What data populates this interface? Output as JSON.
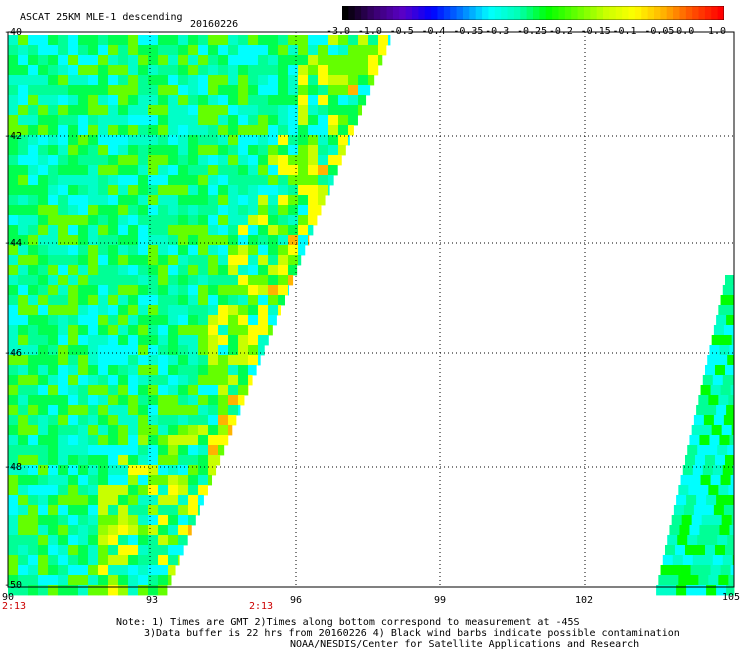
{
  "header": {
    "title": "ASCAT 25KM MLE-1 descending",
    "date": "20160226"
  },
  "colorbar": {
    "labels": [
      "-3.0",
      "-1.0",
      "-0.5",
      "-0.4",
      "-0.35",
      "-0.3",
      "-0.25",
      "-0.2",
      "-0.15",
      "-0.1",
      "-0.05",
      "0.0",
      "1.0"
    ],
    "stops": [
      "#000000",
      "#3a006e",
      "#5a00c8",
      "#0000ff",
      "#0078ff",
      "#00ffff",
      "#00ffb4",
      "#00ff00",
      "#64ff00",
      "#c8ff00",
      "#ffff00",
      "#ffb400",
      "#ff5000",
      "#ff0000"
    ]
  },
  "axes": {
    "lat_labels": [
      "-40",
      "-42",
      "-44",
      "-46",
      "-48",
      "-50"
    ],
    "lon_labels": [
      "90",
      "93",
      "96",
      "99",
      "102",
      "105"
    ]
  },
  "times": {
    "left": "2:13",
    "middle": "2:13"
  },
  "notes": {
    "line1": "Note: 1) Times are GMT 2)Times along bottom correspond to measurement at -45S",
    "line2": "3)Data buffer is 22 hrs from 20160226 4) Black wind barbs indicate possible contamination",
    "line3": "NOAA/NESDIS/Center for Satellite Applications and Research"
  },
  "swaths": [
    {
      "name": "west-swath",
      "colors": [
        "#00ffc8",
        "#00ffff",
        "#00ff96",
        "#00ff50",
        "#64ff00"
      ]
    },
    {
      "name": "east-swath",
      "colors": [
        "#00ffc8",
        "#00ff96",
        "#00ff00",
        "#00ffff"
      ]
    }
  ]
}
